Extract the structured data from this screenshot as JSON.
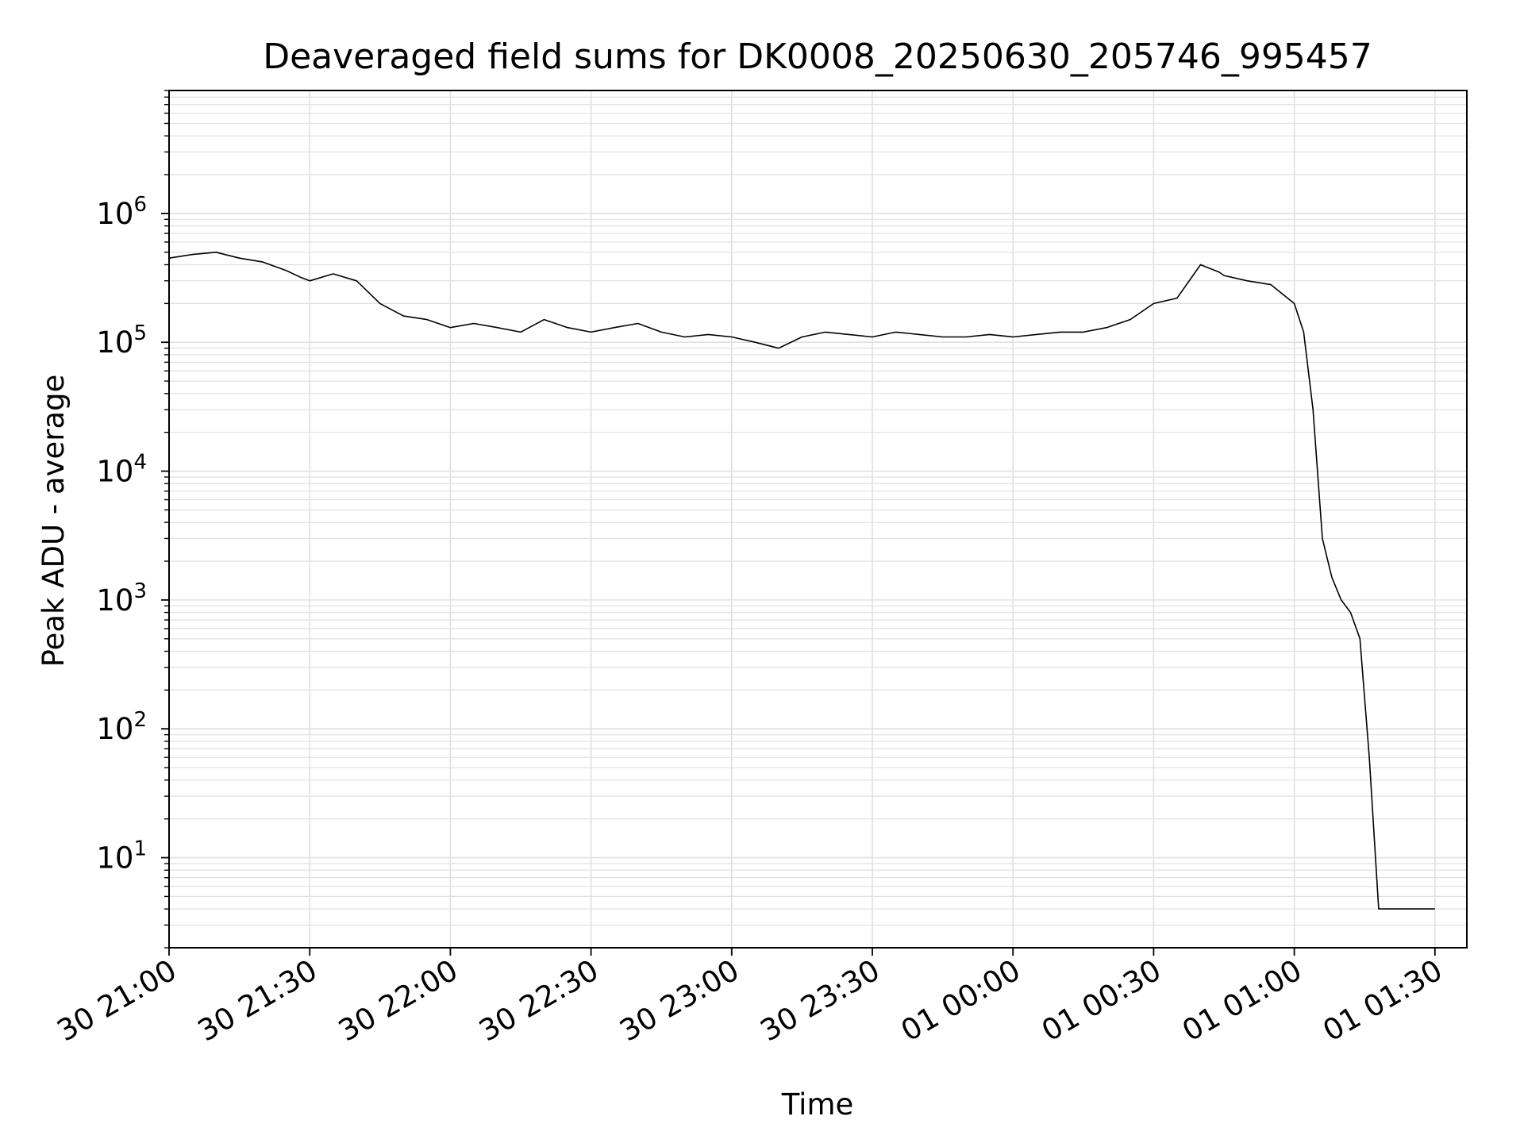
{
  "chart_data": {
    "type": "line",
    "title": "Deaveraged field sums for DK0008_20250630_205746_995457",
    "xlabel": "Time",
    "ylabel": "Peak ADU - average",
    "x_scale": "time",
    "y_scale": "log",
    "xlim": [
      "30 21:00",
      "01 01:30"
    ],
    "ylim": [
      2,
      9000000
    ],
    "grid": true,
    "x_tick_labels": [
      "30 21:00",
      "30 21:30",
      "30 22:00",
      "30 22:30",
      "30 23:00",
      "30 23:30",
      "01 00:00",
      "01 00:30",
      "01 01:00",
      "01 01:30"
    ],
    "y_ticks": [
      {
        "base": "10",
        "exp": "1",
        "value": 10
      },
      {
        "base": "10",
        "exp": "2",
        "value": 100
      },
      {
        "base": "10",
        "exp": "3",
        "value": 1000
      },
      {
        "base": "10",
        "exp": "4",
        "value": 10000
      },
      {
        "base": "10",
        "exp": "5",
        "value": 100000
      },
      {
        "base": "10",
        "exp": "6",
        "value": 1000000
      }
    ],
    "line_color": "#000000",
    "grid_color": "#e0e0e0",
    "series": [
      {
        "x": [
          "30 21:00",
          "30 21:05",
          "30 21:10",
          "30 21:15",
          "30 21:20",
          "30 21:25",
          "30 21:28",
          "30 21:30",
          "30 21:35",
          "30 21:40",
          "30 21:45",
          "30 21:50",
          "30 21:55",
          "30 22:00",
          "30 22:05",
          "30 22:10",
          "30 22:15",
          "30 22:20",
          "30 22:25",
          "30 22:30",
          "30 22:35",
          "30 22:40",
          "30 22:45",
          "30 22:50",
          "30 22:55",
          "30 23:00",
          "30 23:05",
          "30 23:10",
          "30 23:15",
          "30 23:20",
          "30 23:25",
          "30 23:30",
          "30 23:35",
          "30 23:40",
          "30 23:45",
          "30 23:50",
          "30 23:55",
          "01 00:00",
          "01 00:05",
          "01 00:10",
          "01 00:15",
          "01 00:20",
          "01 00:25",
          "01 00:30",
          "01 00:35",
          "01 00:40",
          "01 00:44",
          "01 00:45",
          "01 00:50",
          "01 00:55",
          "01 01:00",
          "01 01:02",
          "01 01:04",
          "01 01:06",
          "01 01:08",
          "01 01:10",
          "01 01:12",
          "01 01:14",
          "01 01:16",
          "01 01:18",
          "01 01:20",
          "01 01:22",
          "01 01:24",
          "01 01:26",
          "01 01:27",
          "01 01:28",
          "01 01:30"
        ],
        "values": [
          450000,
          480000,
          500000,
          450000,
          420000,
          360000,
          320000,
          300000,
          340000,
          300000,
          200000,
          160000,
          150000,
          130000,
          140000,
          130000,
          120000,
          150000,
          130000,
          120000,
          130000,
          140000,
          120000,
          110000,
          115000,
          110000,
          100000,
          90000,
          110000,
          120000,
          115000,
          110000,
          120000,
          115000,
          110000,
          110000,
          115000,
          110000,
          115000,
          120000,
          120000,
          130000,
          150000,
          200000,
          220000,
          400000,
          350000,
          330000,
          300000,
          280000,
          200000,
          120000,
          30000,
          3000,
          1500,
          1000,
          800,
          500,
          60,
          4,
          4,
          4,
          4,
          4,
          4,
          4,
          4
        ]
      }
    ]
  }
}
